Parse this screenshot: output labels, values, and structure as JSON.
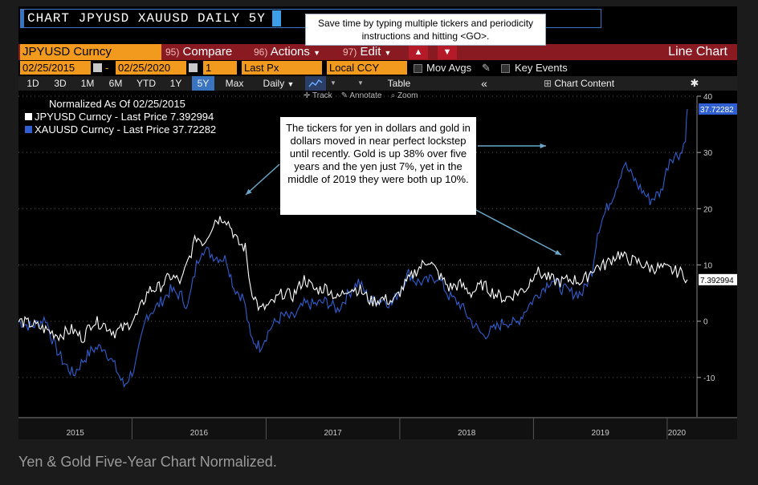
{
  "command": {
    "text": "CHART JPYUSD XAUUSD DAILY 5Y"
  },
  "tooltip": {
    "text": "Save time by typing multiple tickers and periodicity instructions and hitting <GO>."
  },
  "toolbar1": {
    "ticker": "JPYUSD Curncy",
    "compare_num": "95)",
    "compare_label": "Compare",
    "actions_num": "96)",
    "actions_label": "Actions",
    "edit_num": "97)",
    "edit_label": "Edit",
    "chart_type": "Line Chart"
  },
  "toolbar2": {
    "start_date": "02/25/2015",
    "end_date": "02/25/2020",
    "dash": "-",
    "field1": "1",
    "last_px": "Last Px",
    "currency": "Local CCY",
    "mov_avgs": "Mov Avgs",
    "key_events": "Key Events"
  },
  "periods": {
    "items": [
      "1D",
      "3D",
      "1M",
      "6M",
      "YTD",
      "1Y",
      "5Y",
      "Max"
    ],
    "selected": "5Y",
    "frequency": "Daily",
    "table": "Table",
    "chart_content": "Chart Content"
  },
  "tools": {
    "track": "Track",
    "annotate": "Annotate",
    "zoom": "Zoom"
  },
  "annotation": {
    "text": "The tickers for yen in dollars and gold in dollars moved in near perfect lockstep until recently. Gold is up 38% over five years and the yen just 7%, yet in the middle of 2019 they were both up 10%."
  },
  "caption": "Yen & Gold Five-Year Chart Normalized.",
  "colors": {
    "jpy": "#ffffff",
    "xau": "#2f5fd0",
    "accent": "#f29a1e",
    "bar": "#8a1a22"
  },
  "chart_data": {
    "type": "line",
    "title": "Normalized As Of 02/25/2015",
    "x_range": [
      "2015-02-25",
      "2020-02-25"
    ],
    "x_ticks": [
      "2015",
      "2016",
      "2017",
      "2018",
      "2019",
      "2020"
    ],
    "ylim": [
      -17,
      40
    ],
    "y_ticks": [
      -10,
      0,
      10,
      20,
      30,
      40
    ],
    "series": [
      {
        "name": "JPYUSD Curncy - Last Price 7.392994",
        "last_label": "7.392994",
        "last": 7.392994,
        "points": [
          [
            "2015-02-25",
            0
          ],
          [
            "2015-04-01",
            -0.5
          ],
          [
            "2015-05-10",
            -1.5
          ],
          [
            "2015-06-15",
            -2.5
          ],
          [
            "2015-07-20",
            -1.5
          ],
          [
            "2015-08-20",
            -3
          ],
          [
            "2015-09-15",
            0
          ],
          [
            "2015-10-15",
            -0.5
          ],
          [
            "2015-11-15",
            -2
          ],
          [
            "2015-12-15",
            -1
          ],
          [
            "2016-01-15",
            1
          ],
          [
            "2016-02-15",
            5.5
          ],
          [
            "2016-03-15",
            6
          ],
          [
            "2016-04-15",
            8
          ],
          [
            "2016-05-15",
            7
          ],
          [
            "2016-06-01",
            10.5
          ],
          [
            "2016-06-25",
            15
          ],
          [
            "2016-07-15",
            14
          ],
          [
            "2016-08-15",
            18
          ],
          [
            "2016-09-10",
            18.5
          ],
          [
            "2016-09-25",
            17
          ],
          [
            "2016-10-15",
            14
          ],
          [
            "2016-11-05",
            13
          ],
          [
            "2016-11-20",
            6
          ],
          [
            "2016-12-15",
            2
          ],
          [
            "2017-01-15",
            3
          ],
          [
            "2017-02-15",
            5
          ],
          [
            "2017-03-15",
            4.5
          ],
          [
            "2017-04-15",
            7.5
          ],
          [
            "2017-05-15",
            5.5
          ],
          [
            "2017-06-15",
            6
          ],
          [
            "2017-07-15",
            4
          ],
          [
            "2017-08-15",
            6
          ],
          [
            "2017-09-15",
            5.5
          ],
          [
            "2017-10-15",
            3.5
          ],
          [
            "2017-11-15",
            4
          ],
          [
            "2017-12-15",
            3.5
          ],
          [
            "2018-01-15",
            6.5
          ],
          [
            "2018-02-15",
            9
          ],
          [
            "2018-03-20",
            11
          ],
          [
            "2018-04-15",
            8.5
          ],
          [
            "2018-05-15",
            6
          ],
          [
            "2018-06-15",
            6.5
          ],
          [
            "2018-07-15",
            5
          ],
          [
            "2018-08-15",
            6.5
          ],
          [
            "2018-09-15",
            5
          ],
          [
            "2018-10-15",
            4
          ],
          [
            "2018-11-15",
            5
          ],
          [
            "2018-12-15",
            6
          ],
          [
            "2019-01-05",
            9
          ],
          [
            "2019-02-15",
            7.5
          ],
          [
            "2019-03-15",
            7
          ],
          [
            "2019-04-15",
            7.5
          ],
          [
            "2019-05-15",
            7
          ],
          [
            "2019-06-15",
            9.5
          ],
          [
            "2019-07-15",
            10
          ],
          [
            "2019-08-20",
            12
          ],
          [
            "2019-09-15",
            11
          ],
          [
            "2019-10-15",
            10.5
          ],
          [
            "2019-11-15",
            9.5
          ],
          [
            "2019-12-15",
            9.5
          ],
          [
            "2020-01-15",
            9
          ],
          [
            "2020-02-15",
            8.5
          ],
          [
            "2020-02-25",
            7.392994
          ]
        ]
      },
      {
        "name": "XAUUSD Curncy - Last Price 37.72282",
        "last_label": "37.72282",
        "last": 37.72282,
        "points": [
          [
            "2015-02-25",
            0
          ],
          [
            "2015-04-01",
            -1
          ],
          [
            "2015-05-10",
            0.5
          ],
          [
            "2015-06-01",
            -4
          ],
          [
            "2015-06-25",
            -7
          ],
          [
            "2015-07-25",
            -9.5
          ],
          [
            "2015-08-20",
            -7
          ],
          [
            "2015-09-15",
            -5
          ],
          [
            "2015-10-15",
            -4.5
          ],
          [
            "2015-11-15",
            -8
          ],
          [
            "2015-12-10",
            -11.5
          ],
          [
            "2016-01-10",
            -8
          ],
          [
            "2016-02-10",
            1
          ],
          [
            "2016-03-15",
            3
          ],
          [
            "2016-04-15",
            5.5
          ],
          [
            "2016-05-15",
            4.5
          ],
          [
            "2016-06-01",
            2.5
          ],
          [
            "2016-06-25",
            10
          ],
          [
            "2016-07-10",
            13
          ],
          [
            "2016-08-15",
            11.5
          ],
          [
            "2016-09-15",
            11
          ],
          [
            "2016-10-05",
            6
          ],
          [
            "2016-11-01",
            4
          ],
          [
            "2016-11-20",
            -3
          ],
          [
            "2016-12-15",
            -4.5
          ],
          [
            "2017-01-15",
            -1
          ],
          [
            "2017-02-15",
            1
          ],
          [
            "2017-03-15",
            0.5
          ],
          [
            "2017-04-15",
            3
          ],
          [
            "2017-05-15",
            3
          ],
          [
            "2017-06-15",
            3.5
          ],
          [
            "2017-07-15",
            2
          ],
          [
            "2017-08-15",
            5
          ],
          [
            "2017-09-10",
            7
          ],
          [
            "2017-10-15",
            3.5
          ],
          [
            "2017-11-15",
            4
          ],
          [
            "2017-12-10",
            3
          ],
          [
            "2018-01-25",
            8.5
          ],
          [
            "2018-02-15",
            7
          ],
          [
            "2018-03-15",
            7
          ],
          [
            "2018-04-15",
            8
          ],
          [
            "2018-05-15",
            4.5
          ],
          [
            "2018-06-15",
            3
          ],
          [
            "2018-07-15",
            0
          ],
          [
            "2018-08-15",
            -2.5
          ],
          [
            "2018-09-15",
            -1.5
          ],
          [
            "2018-10-15",
            0
          ],
          [
            "2018-11-15",
            -0.5
          ],
          [
            "2018-12-15",
            2.5
          ],
          [
            "2019-01-15",
            5
          ],
          [
            "2019-02-20",
            7.5
          ],
          [
            "2019-03-15",
            6
          ],
          [
            "2019-04-15",
            5
          ],
          [
            "2019-05-15",
            5
          ],
          [
            "2019-06-10",
            9
          ],
          [
            "2019-06-25",
            16
          ],
          [
            "2019-07-20",
            20
          ],
          [
            "2019-08-10",
            23
          ],
          [
            "2019-09-05",
            28
          ],
          [
            "2019-09-15",
            27
          ],
          [
            "2019-10-15",
            24
          ],
          [
            "2019-11-15",
            21.5
          ],
          [
            "2019-12-15",
            23
          ],
          [
            "2020-01-08",
            29
          ],
          [
            "2020-01-25",
            29.5
          ],
          [
            "2020-02-10",
            30
          ],
          [
            "2020-02-20",
            33
          ],
          [
            "2020-02-25",
            37.72282
          ]
        ]
      }
    ]
  }
}
